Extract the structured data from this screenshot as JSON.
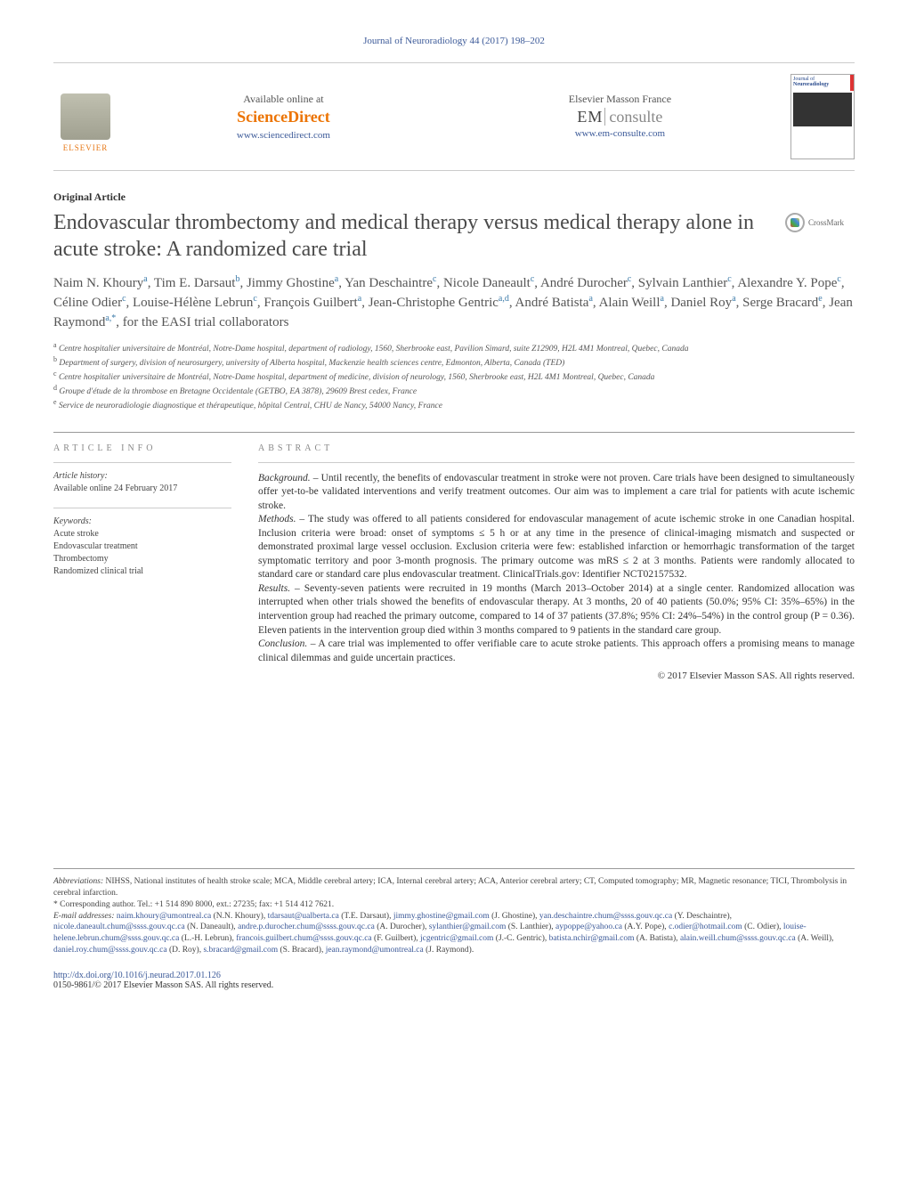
{
  "page_bg": "#ffffff",
  "link_color": "#3b5998",
  "heading_color": "#4a4a4a",
  "accent_orange": "#e77817",
  "journal_ref": "Journal of Neuroradiology 44 (2017) 198–202",
  "header": {
    "elsevier": "ELSEVIER",
    "available_label": "Available online at",
    "sd_logo": "ScienceDirect",
    "sd_url": "www.sciencedirect.com",
    "masson_label": "Elsevier Masson France",
    "em_logo_em": "EM",
    "em_logo_consulte": "consulte",
    "em_url": "www.em-consulte.com",
    "cover_title_line1": "Journal of",
    "cover_title_line2": "Neuroradiology"
  },
  "article_type": "Original Article",
  "title": "Endovascular thrombectomy and medical therapy versus medical therapy alone in acute stroke: A randomized care trial",
  "crossmark_label": "CrossMark",
  "authors_html": "Naim N. Khoury<sup>a</sup>, Tim E. Darsaut<sup>b</sup>, Jimmy Ghostine<sup>a</sup>, Yan Deschaintre<sup>c</sup>, Nicole Daneault<sup>c</sup>, André Durocher<sup>c</sup>, Sylvain Lanthier<sup>c</sup>, Alexandre Y. Pope<sup>c</sup>, Céline Odier<sup>c</sup>, Louise-Hélène Lebrun<sup>c</sup>, François Guilbert<sup>a</sup>, Jean-Christophe Gentric<sup>a,d</sup>, André Batista<sup>a</sup>, Alain Weill<sup>a</sup>, Daniel Roy<sup>a</sup>, Serge Bracard<sup>e</sup>, Jean Raymond<sup>a,*</sup>, for the EASI trial collaborators",
  "affiliations": [
    {
      "key": "a",
      "text": "Centre hospitalier universitaire de Montréal, Notre-Dame hospital, department of radiology, 1560, Sherbrooke east, Pavilion Simard, suite Z12909, H2L 4M1 Montreal, Quebec, Canada"
    },
    {
      "key": "b",
      "text": "Department of surgery, division of neurosurgery, university of Alberta hospital, Mackenzie health sciences centre, Edmonton, Alberta, Canada (TED)"
    },
    {
      "key": "c",
      "text": "Centre hospitalier universitaire de Montréal, Notre-Dame hospital, department of medicine, division of neurology, 1560, Sherbrooke east, H2L 4M1 Montreal, Quebec, Canada"
    },
    {
      "key": "d",
      "text": "Groupe d'étude de la thrombose en Bretagne Occidentale (GETBO, EA 3878), 29609 Brest cedex, France"
    },
    {
      "key": "e",
      "text": "Service de neuroradiologie diagnostique et thérapeutique, hôpital Central, CHU de Nancy, 54000 Nancy, France"
    }
  ],
  "info": {
    "heading": "article info",
    "history_label": "Article history:",
    "history_value": "Available online 24 February 2017",
    "keywords_label": "Keywords:",
    "keywords": [
      "Acute stroke",
      "Endovascular treatment",
      "Thrombectomy",
      "Randomized clinical trial"
    ]
  },
  "abstract": {
    "heading": "abstract",
    "sections": [
      {
        "label": "Background. –",
        "text": "Until recently, the benefits of endovascular treatment in stroke were not proven. Care trials have been designed to simultaneously offer yet-to-be validated interventions and verify treatment outcomes. Our aim was to implement a care trial for patients with acute ischemic stroke."
      },
      {
        "label": "Methods. –",
        "text": "The study was offered to all patients considered for endovascular management of acute ischemic stroke in one Canadian hospital. Inclusion criteria were broad: onset of symptoms ≤ 5 h or at any time in the presence of clinical-imaging mismatch and suspected or demonstrated proximal large vessel occlusion. Exclusion criteria were few: established infarction or hemorrhagic transformation of the target symptomatic territory and poor 3-month prognosis. The primary outcome was mRS ≤ 2 at 3 months. Patients were randomly allocated to standard care or standard care plus endovascular treatment. ClinicalTrials.gov: Identifier NCT02157532."
      },
      {
        "label": "Results. –",
        "text": "Seventy-seven patients were recruited in 19 months (March 2013–October 2014) at a single center. Randomized allocation was interrupted when other trials showed the benefits of endovascular therapy. At 3 months, 20 of 40 patients (50.0%; 95% CI: 35%–65%) in the intervention group had reached the primary outcome, compared to 14 of 37 patients (37.8%; 95% CI: 24%–54%) in the control group (P = 0.36). Eleven patients in the intervention group died within 3 months compared to 9 patients in the standard care group."
      },
      {
        "label": "Conclusion. –",
        "text": "A care trial was implemented to offer verifiable care to acute stroke patients. This approach offers a promising means to manage clinical dilemmas and guide uncertain practices."
      }
    ],
    "copyright": "© 2017 Elsevier Masson SAS. All rights reserved."
  },
  "footnotes": {
    "abbrev_label": "Abbreviations:",
    "abbrev_text": "NIHSS, National institutes of health stroke scale; MCA, Middle cerebral artery; ICA, Internal cerebral artery; ACA, Anterior cerebral artery; CT, Computed tomography; MR, Magnetic resonance; TICI, Thrombolysis in cerebral infarction.",
    "corresponding": "Corresponding author. Tel.: +1 514 890 8000, ext.: 27235; fax: +1 514 412 7621.",
    "emails_label": "E-mail addresses:",
    "emails": [
      {
        "email": "naim.khoury@umontreal.ca",
        "who": "(N.N. Khoury)"
      },
      {
        "email": "tdarsaut@ualberta.ca",
        "who": "(T.E. Darsaut)"
      },
      {
        "email": "jimmy.ghostine@gmail.com",
        "who": "(J. Ghostine)"
      },
      {
        "email": "yan.deschaintre.chum@ssss.gouv.qc.ca",
        "who": "(Y. Deschaintre)"
      },
      {
        "email": "nicole.daneault.chum@ssss.gouv.qc.ca",
        "who": "(N. Daneault)"
      },
      {
        "email": "andre.p.durocher.chum@ssss.gouv.qc.ca",
        "who": "(A. Durocher)"
      },
      {
        "email": "sylanthier@gmail.com",
        "who": "(S. Lanthier)"
      },
      {
        "email": "aypoppe@yahoo.ca",
        "who": "(A.Y. Pope)"
      },
      {
        "email": "c.odier@hotmail.com",
        "who": "(C. Odier)"
      },
      {
        "email": "louise-helene.lebrun.chum@ssss.gouv.qc.ca",
        "who": "(L.-H. Lebrun)"
      },
      {
        "email": "francois.guilbert.chum@ssss.gouv.qc.ca",
        "who": "(F. Guilbert)"
      },
      {
        "email": "jcgentric@gmail.com",
        "who": "(J.-C. Gentric)"
      },
      {
        "email": "batista.nchir@gmail.com",
        "who": "(A. Batista)"
      },
      {
        "email": "alain.weill.chum@ssss.gouv.qc.ca",
        "who": "(A. Weill)"
      },
      {
        "email": "daniel.roy.chum@ssss.gouv.qc.ca",
        "who": "(D. Roy)"
      },
      {
        "email": "s.bracard@gmail.com",
        "who": "(S. Bracard)"
      },
      {
        "email": "jean.raymond@umontreal.ca",
        "who": "(J. Raymond)"
      }
    ]
  },
  "doi": {
    "url": "http://dx.doi.org/10.1016/j.neurad.2017.01.126",
    "issn_line": "0150-9861/© 2017 Elsevier Masson SAS. All rights reserved."
  }
}
